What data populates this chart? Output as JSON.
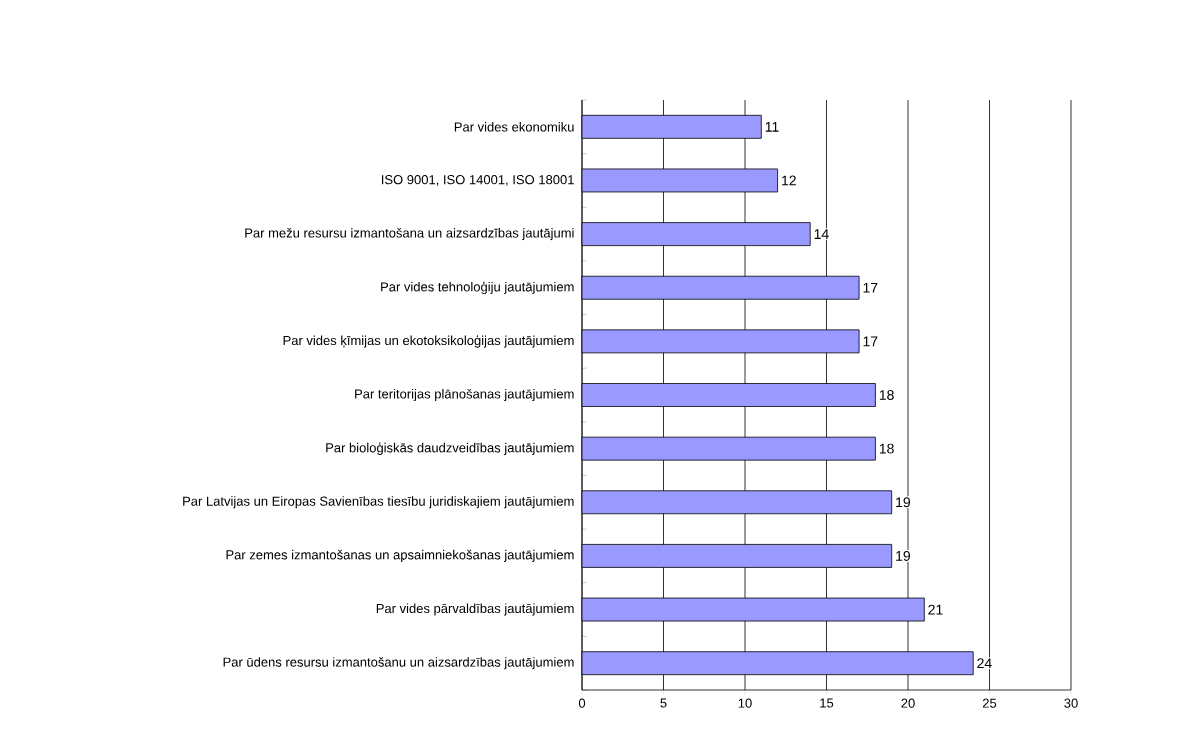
{
  "chart_data": {
    "type": "bar",
    "orientation": "horizontal",
    "categories": [
      "Par vides ekonomiku",
      "ISO 9001, ISO 14001, ISO 18001",
      "Par mežu resursu izmantošana un aizsardzības jautājumi",
      "Par vides tehnoloģiju jautājumiem",
      "Par vides ķīmijas un ekotoksikoloģijas jautājumiem",
      "Par teritorijas plānošanas jautājumiem",
      "Par bioloģiskās daudzveidības jautājumiem",
      "Par Latvijas un Eiropas Savienības tiesību juridiskajiem jautājumiem",
      "Par zemes izmantošanas un apsaimniekošanas jautājumiem",
      "Par vides pārvaldības jautājumiem",
      "Par ūdens resursu izmantošanu un aizsardzības jautājumiem"
    ],
    "values": [
      11,
      12,
      14,
      17,
      17,
      18,
      18,
      19,
      19,
      21,
      24
    ],
    "color": "#9999ff",
    "xlim": [
      0,
      30
    ],
    "xticks": [
      0,
      5,
      10,
      15,
      20,
      25,
      30
    ],
    "grid": "x",
    "data_labels": true
  }
}
